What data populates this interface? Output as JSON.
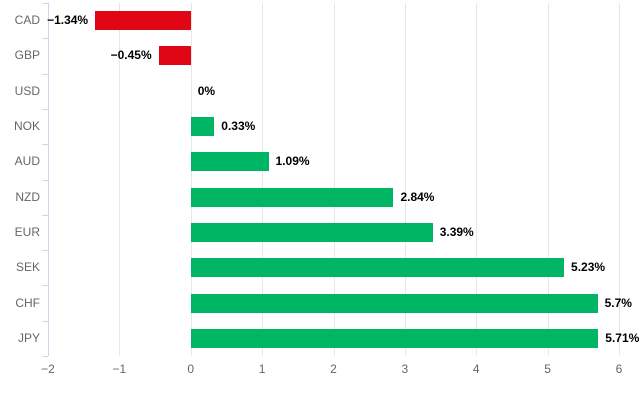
{
  "chart_data": {
    "type": "bar",
    "orientation": "horizontal",
    "title": "",
    "xlabel": "",
    "ylabel": "",
    "categories": [
      "CAD",
      "GBP",
      "USD",
      "NOK",
      "AUD",
      "NZD",
      "EUR",
      "SEK",
      "CHF",
      "JPY"
    ],
    "values": [
      -1.34,
      -0.45,
      0,
      0.33,
      1.09,
      2.84,
      3.39,
      5.23,
      5.7,
      5.71
    ],
    "value_labels": [
      "−1.34%",
      "−0.45%",
      "0%",
      "0.33%",
      "1.09%",
      "2.84%",
      "3.39%",
      "5.23%",
      "5.7%",
      "5.71%"
    ],
    "x_ticks": [
      -2,
      -1,
      0,
      1,
      2,
      3,
      4,
      5,
      6
    ],
    "x_tick_labels": [
      "−2",
      "−1",
      "0",
      "1",
      "2",
      "3",
      "4",
      "5",
      "6"
    ],
    "xlim": [
      -2,
      6
    ],
    "grid": true,
    "legend": false,
    "colors": {
      "positive_bar": "#00b564",
      "negative_bar": "#e00613",
      "gridline": "#e6e6e6",
      "axis_line": "#ccd6eb",
      "category_label": "#666666",
      "tick_label": "#666666",
      "value_label": "#000000",
      "background": "#ffffff"
    }
  }
}
